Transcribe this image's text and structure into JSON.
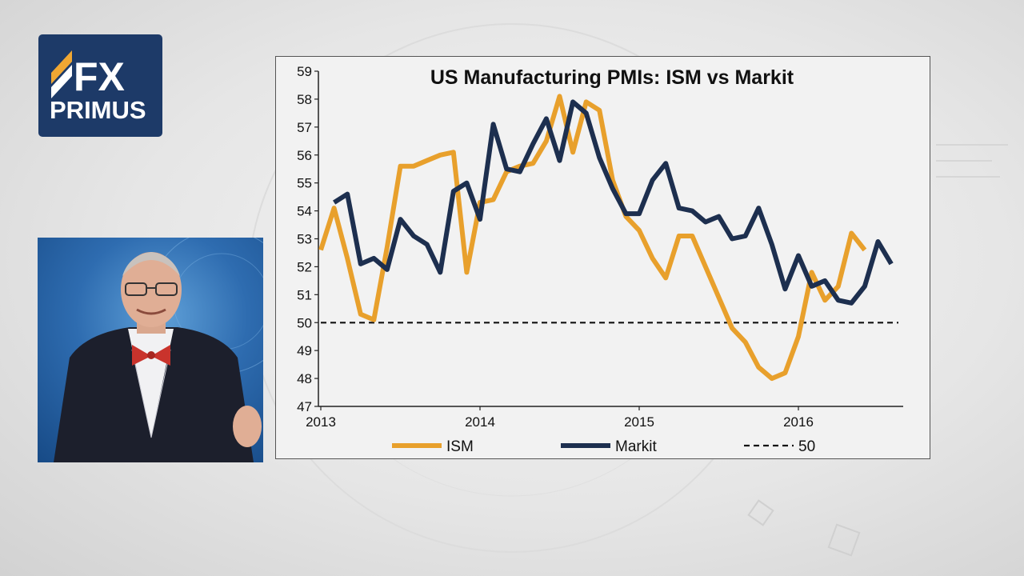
{
  "logo": {
    "line1": "FX",
    "line2": "PRIMUS"
  },
  "colors": {
    "ism": "#e8a02c",
    "markit": "#1d2f4f",
    "threshold": "#111111",
    "logo_bg": "#1d3a68"
  },
  "chart_data": {
    "type": "line",
    "title": "US Manufacturing PMIs:  ISM vs Markit",
    "ylim": [
      47,
      59
    ],
    "yticks": [
      47,
      48,
      49,
      50,
      51,
      52,
      53,
      54,
      55,
      56,
      57,
      58,
      59
    ],
    "xlim": [
      "2013-01",
      "2016-08"
    ],
    "xticks": [
      "2013",
      "2014",
      "2015",
      "2016"
    ],
    "grid": false,
    "legend_position": "bottom",
    "series": [
      {
        "name": "ISM",
        "x": [
          "2013-01",
          "2013-02",
          "2013-03",
          "2013-04",
          "2013-05",
          "2013-06",
          "2013-07",
          "2013-08",
          "2013-09",
          "2013-10",
          "2013-11",
          "2013-12",
          "2014-01",
          "2014-02",
          "2014-03",
          "2014-04",
          "2014-05",
          "2014-06",
          "2014-07",
          "2014-08",
          "2014-09",
          "2014-10",
          "2014-11",
          "2014-12",
          "2015-01",
          "2015-02",
          "2015-03",
          "2015-04",
          "2015-05",
          "2015-06",
          "2015-07",
          "2015-08",
          "2015-09",
          "2015-10",
          "2015-11",
          "2015-12",
          "2016-01",
          "2016-02",
          "2016-03",
          "2016-04",
          "2016-05",
          "2016-06",
          "2016-07"
        ],
        "values": [
          52.6,
          54.1,
          52.3,
          50.3,
          50.1,
          52.7,
          55.6,
          55.6,
          55.8,
          56.0,
          56.1,
          51.8,
          54.3,
          54.4,
          55.4,
          55.6,
          55.7,
          56.5,
          58.1,
          56.1,
          57.9,
          57.6,
          55.1,
          53.8,
          53.3,
          52.3,
          51.6,
          53.1,
          53.1,
          52.0,
          50.9,
          49.8,
          49.3,
          48.4,
          48.0,
          48.2,
          49.5,
          51.8,
          50.8,
          51.3,
          53.2,
          52.6,
          null
        ]
      },
      {
        "name": "Markit",
        "x": [
          "2013-02",
          "2013-03",
          "2013-04",
          "2013-05",
          "2013-06",
          "2013-07",
          "2013-08",
          "2013-09",
          "2013-10",
          "2013-11",
          "2013-12",
          "2014-01",
          "2014-02",
          "2014-03",
          "2014-04",
          "2014-05",
          "2014-06",
          "2014-07",
          "2014-08",
          "2014-09",
          "2014-10",
          "2014-11",
          "2014-12",
          "2015-01",
          "2015-02",
          "2015-03",
          "2015-04",
          "2015-05",
          "2015-06",
          "2015-07",
          "2015-08",
          "2015-09",
          "2015-10",
          "2015-11",
          "2015-12",
          "2016-01",
          "2016-02",
          "2016-03",
          "2016-04",
          "2016-05",
          "2016-06",
          "2016-07",
          "2016-08"
        ],
        "values": [
          54.3,
          54.6,
          52.1,
          52.3,
          51.9,
          53.7,
          53.1,
          52.8,
          51.8,
          54.7,
          55.0,
          53.7,
          57.1,
          55.5,
          55.4,
          56.4,
          57.3,
          55.8,
          57.9,
          57.5,
          55.9,
          54.8,
          53.9,
          53.9,
          55.1,
          55.7,
          54.1,
          54.0,
          53.6,
          53.8,
          53.0,
          53.1,
          54.1,
          52.8,
          51.2,
          52.4,
          51.3,
          51.5,
          50.8,
          50.7,
          51.3,
          52.9,
          52.1
        ]
      },
      {
        "name": "50",
        "style": "dashed",
        "x": [
          "2013-01",
          "2016-08"
        ],
        "values": [
          50,
          50
        ]
      }
    ]
  }
}
